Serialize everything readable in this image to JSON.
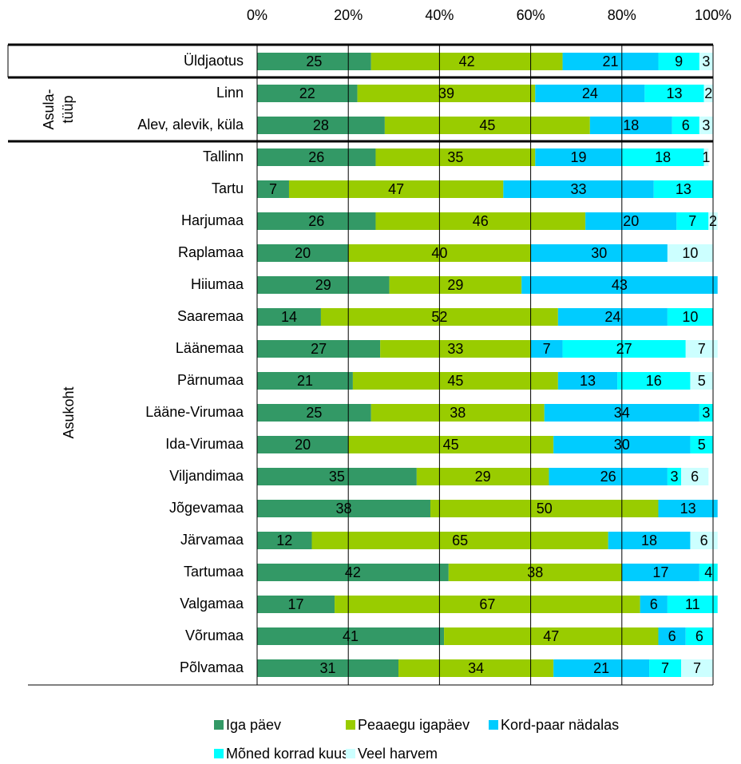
{
  "chart_data": {
    "type": "stacked-bar-horizontal",
    "categories": [
      "Üldjaotus",
      "Linn",
      "Alev, alevik, küla",
      "Tallinn",
      "Tartu",
      "Harjumaa",
      "Raplamaa",
      "Hiiumaa",
      "Saaremaa",
      "Läänemaa",
      "Pärnumaa",
      "Lääne-Virumaa",
      "Ida-Virumaa",
      "Viljandimaa",
      "Jõgevamaa",
      "Järvamaa",
      "Tartumaa",
      "Valgamaa",
      "Võrumaa",
      "Põlvamaa"
    ],
    "groups": [
      {
        "label": [
          "Asula-",
          "tüüp"
        ]
      },
      {
        "label": [
          "Asukoht"
        ]
      }
    ],
    "xlim": [
      0,
      100
    ],
    "xticks": [
      {
        "value": 0,
        "label": "0%"
      },
      {
        "value": 20,
        "label": "20%"
      },
      {
        "value": 40,
        "label": "40%"
      },
      {
        "value": 60,
        "label": "60%"
      },
      {
        "value": 80,
        "label": "80%"
      },
      {
        "value": 100,
        "label": "100%"
      }
    ],
    "grid": true,
    "legend": "bottom",
    "series": [
      {
        "name": "Iga päev",
        "color": "#339966",
        "values": [
          25,
          22,
          28,
          26,
          7,
          26,
          20,
          29,
          14,
          27,
          21,
          25,
          20,
          35,
          38,
          12,
          42,
          17,
          41,
          31
        ]
      },
      {
        "name": "Peaaegu igapäev",
        "color": "#99cc00",
        "values": [
          42,
          39,
          45,
          35,
          47,
          46,
          40,
          29,
          52,
          33,
          45,
          38,
          45,
          29,
          50,
          65,
          38,
          67,
          47,
          34
        ]
      },
      {
        "name": "Kord-paar nädalas",
        "color": "#00ccff",
        "values": [
          21,
          24,
          18,
          19,
          33,
          20,
          30,
          43,
          24,
          7,
          13,
          34,
          30,
          26,
          13,
          18,
          17,
          6,
          6,
          21
        ]
      },
      {
        "name": "Mõned korrad kuus",
        "color": "#00ffff",
        "values": [
          9,
          13,
          6,
          18,
          13,
          7,
          null,
          null,
          10,
          27,
          16,
          3,
          5,
          3,
          null,
          null,
          4,
          11,
          6,
          7
        ]
      },
      {
        "name": "Veel harvem",
        "color": "#ccffff",
        "values": [
          3,
          2,
          3,
          1,
          null,
          2,
          10,
          null,
          null,
          7,
          5,
          null,
          null,
          6,
          null,
          6,
          null,
          null,
          null,
          7
        ]
      }
    ]
  }
}
